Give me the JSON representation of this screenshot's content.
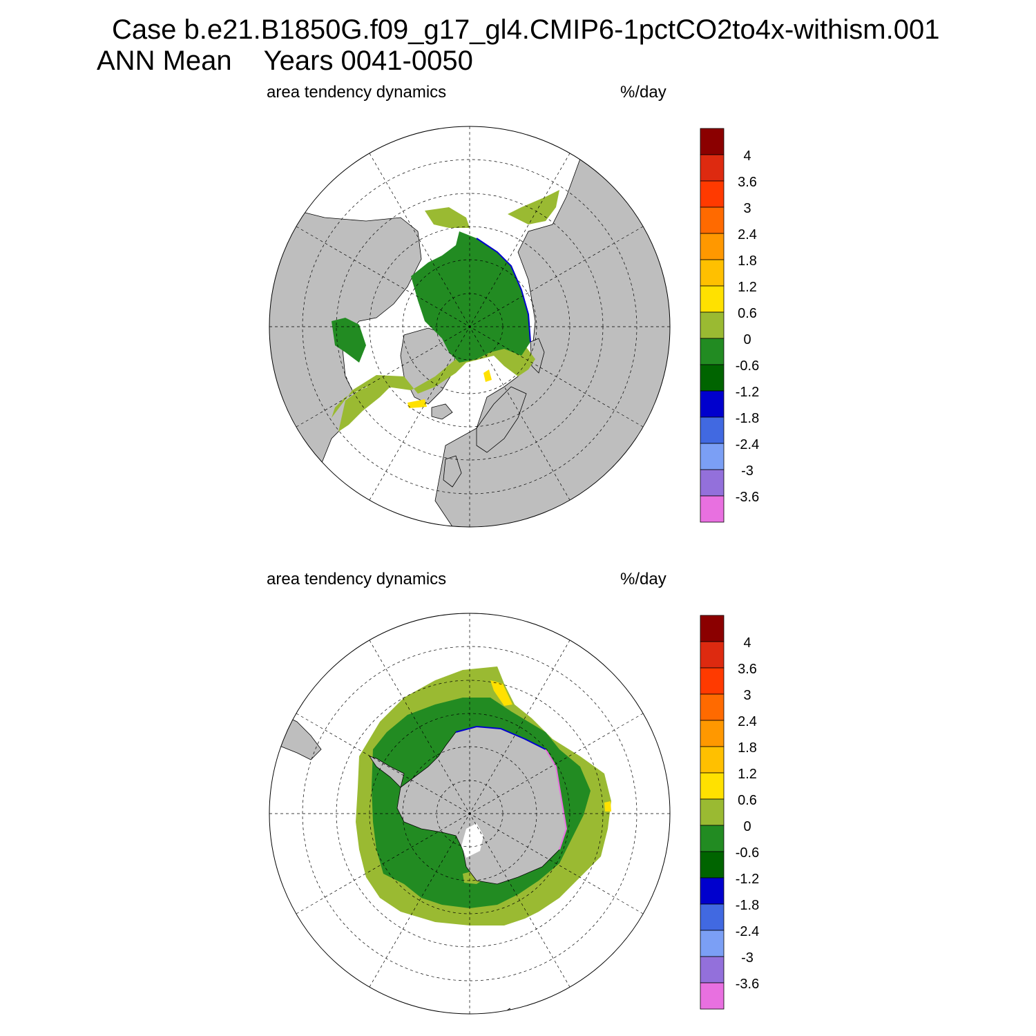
{
  "header": {
    "case_title": "Case b.e21.B1850G.f09_g17_gl4.CMIP6-1pctCO2to4x-withism.001",
    "season": "ANN Mean",
    "years": "Years 0041-0050"
  },
  "colors": {
    "land": "#bebebe",
    "ocean_no_ice": "#ffffff",
    "bins": [
      "#e870e0",
      "#9370db",
      "#7b9ff5",
      "#4169e1",
      "#0000cd",
      "#006400",
      "#228b22",
      "#9aba32",
      "#ffe100",
      "#ffc000",
      "#ff9800",
      "#ff6a00",
      "#ff3a00",
      "#dd2a10",
      "#8b0000"
    ]
  },
  "colorbar": {
    "labels": [
      "4",
      "3.6",
      "3",
      "2.4",
      "1.8",
      "1.2",
      "0.6",
      "0",
      "-0.6",
      "-1.2",
      "-1.8",
      "-2.4",
      "-3",
      "-3.6"
    ]
  },
  "panels": [
    {
      "id": "north",
      "left_label": "area tendency dynamics",
      "units": "%/day",
      "hemisphere": "Northern Hemisphere"
    },
    {
      "id": "south",
      "left_label": "area tendency dynamics",
      "units": "%/day",
      "hemisphere": "Southern Hemisphere"
    }
  ]
}
